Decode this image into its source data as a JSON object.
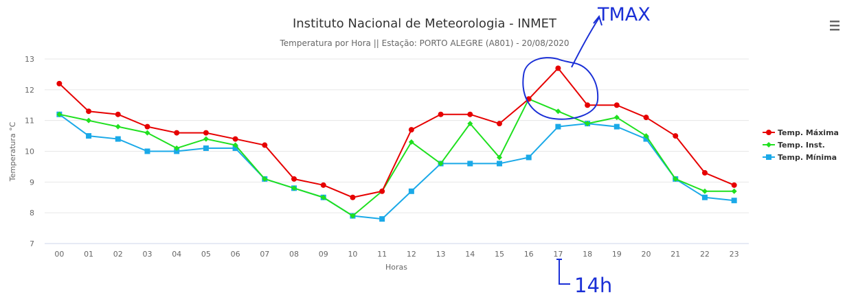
{
  "chart_data": {
    "type": "line",
    "title": "Instituto Nacional de Meteorologia - INMET",
    "subtitle": "Temperatura por Hora || Estação: PORTO ALEGRE (A801) - 20/08/2020",
    "xlabel": "Horas",
    "ylabel": "Temperatura °C",
    "categories": [
      "00",
      "01",
      "02",
      "03",
      "04",
      "05",
      "06",
      "07",
      "08",
      "09",
      "10",
      "11",
      "12",
      "13",
      "14",
      "15",
      "16",
      "17",
      "18",
      "19",
      "20",
      "21",
      "22",
      "23"
    ],
    "ylim": [
      7,
      13
    ],
    "yticks": [
      7,
      8,
      9,
      10,
      11,
      12,
      13
    ],
    "grid": true,
    "legend_position": "right",
    "series": [
      {
        "name": "Temp. Máxima",
        "color": "#e60000",
        "marker": "circle",
        "values": [
          12.2,
          11.3,
          11.2,
          10.8,
          10.6,
          10.6,
          10.4,
          10.2,
          9.1,
          8.9,
          8.5,
          8.7,
          10.7,
          11.2,
          11.2,
          10.9,
          11.7,
          12.7,
          11.5,
          11.5,
          11.1,
          10.5,
          9.3,
          8.9
        ]
      },
      {
        "name": "Temp. Inst.",
        "color": "#1fe01f",
        "marker": "diamond",
        "values": [
          11.2,
          11.0,
          10.8,
          10.6,
          10.1,
          10.4,
          10.2,
          9.1,
          8.8,
          8.5,
          7.9,
          8.7,
          10.3,
          9.6,
          10.9,
          9.8,
          11.7,
          11.3,
          10.9,
          11.1,
          10.5,
          9.1,
          8.7,
          8.7
        ]
      },
      {
        "name": "Temp. Mínima",
        "color": "#1aa9e8",
        "marker": "square",
        "values": [
          11.2,
          10.5,
          10.4,
          10.0,
          10.0,
          10.1,
          10.1,
          9.1,
          8.8,
          8.5,
          7.9,
          7.8,
          8.7,
          9.6,
          9.6,
          9.6,
          9.8,
          10.8,
          10.9,
          10.8,
          10.4,
          9.1,
          8.5,
          8.4
        ]
      }
    ],
    "annotations": {
      "tmax_label": "TMAX",
      "hour_label": "14h",
      "color": "#1a2fd6"
    }
  }
}
